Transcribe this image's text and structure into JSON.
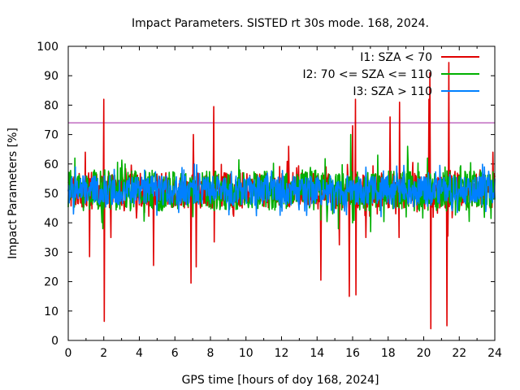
{
  "chart_data": {
    "type": "line",
    "title": "Impact Parameters. SISTED rt 30s mode. 168, 2024.",
    "xlabel": "GPS time [hours of doy 168, 2024]",
    "ylabel": "Impact Parameters [%]",
    "xlim": [
      0,
      24
    ],
    "ylim": [
      0,
      100
    ],
    "x_ticks": [
      "0",
      "2",
      "4",
      "6",
      "8",
      "10",
      "12",
      "14",
      "16",
      "18",
      "20",
      "22",
      "24"
    ],
    "y_ticks": [
      "0",
      "10",
      "20",
      "30",
      "40",
      "50",
      "60",
      "70",
      "80",
      "90",
      "100"
    ],
    "legend_position": "top-right",
    "threshold": {
      "value": 74,
      "color": "#a020a0"
    },
    "baseline": 51,
    "series": [
      {
        "name": "I1: SZA < 70",
        "color": "#e00000",
        "band": [
          45,
          57
        ],
        "spikes_up": [
          [
            0.95,
            64
          ],
          [
            2.0,
            82
          ],
          [
            7.05,
            70
          ],
          [
            8.2,
            79.5
          ],
          [
            12.4,
            66
          ],
          [
            16.0,
            73
          ],
          [
            16.15,
            82
          ],
          [
            18.1,
            76
          ],
          [
            18.65,
            81
          ],
          [
            20.3,
            82
          ],
          [
            20.35,
            91
          ],
          [
            21.4,
            94.5
          ],
          [
            23.9,
            64
          ]
        ],
        "spikes_down": [
          [
            1.2,
            28.5
          ],
          [
            2.0,
            6.5
          ],
          [
            2.4,
            35
          ],
          [
            4.8,
            25.5
          ],
          [
            6.9,
            19.5
          ],
          [
            7.2,
            25
          ],
          [
            8.2,
            33.5
          ],
          [
            14.2,
            20.5
          ],
          [
            15.25,
            32.5
          ],
          [
            15.8,
            15
          ],
          [
            16.2,
            15.5
          ],
          [
            16.75,
            35
          ],
          [
            18.6,
            35
          ],
          [
            20.4,
            4
          ],
          [
            21.3,
            5
          ],
          [
            21.35,
            35.5
          ]
        ]
      },
      {
        "name": "I2: 70 <= SZA <= 110",
        "color": "#00b000",
        "band": [
          44,
          58
        ],
        "spikes_up": [
          [
            15.9,
            70
          ],
          [
            17.4,
            63
          ],
          [
            19.1,
            66
          ],
          [
            20.2,
            62
          ]
        ],
        "spikes_down": [
          [
            1.95,
            38
          ],
          [
            15.2,
            38
          ],
          [
            16.0,
            40
          ],
          [
            17.0,
            37
          ],
          [
            19.0,
            42
          ]
        ]
      },
      {
        "name": "I3: SZA > 110",
        "color": "#0080ff",
        "band": [
          46,
          56
        ],
        "spikes_up": [
          [
            0.4,
            59
          ],
          [
            6.5,
            58
          ],
          [
            20.9,
            59.5
          ],
          [
            23.4,
            59
          ]
        ],
        "spikes_down": [
          [
            0.3,
            43
          ],
          [
            6.2,
            43.5
          ],
          [
            13.3,
            44
          ],
          [
            21.9,
            43.5
          ]
        ]
      }
    ]
  }
}
